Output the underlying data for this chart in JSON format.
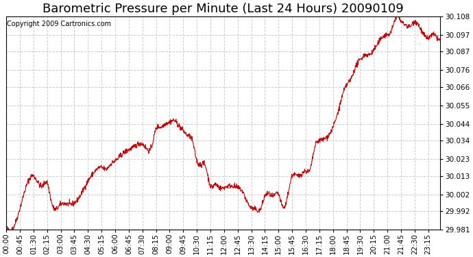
{
  "title": "Barometric Pressure per Minute (Last 24 Hours) 20090109",
  "copyright": "Copyright 2009 Cartronics.com",
  "line_color": "#cc0000",
  "background_color": "#ffffff",
  "grid_color": "#cccccc",
  "ylim": [
    29.981,
    30.108
  ],
  "yticks": [
    29.981,
    29.992,
    30.002,
    30.013,
    30.023,
    30.034,
    30.044,
    30.055,
    30.066,
    30.076,
    30.087,
    30.097,
    30.108
  ],
  "xtick_labels": [
    "00:00",
    "00:45",
    "01:30",
    "02:15",
    "03:00",
    "03:45",
    "04:30",
    "05:15",
    "06:00",
    "06:45",
    "07:30",
    "08:15",
    "09:00",
    "09:45",
    "10:30",
    "11:15",
    "12:00",
    "12:45",
    "13:30",
    "14:15",
    "15:00",
    "15:45",
    "16:30",
    "17:15",
    "18:00",
    "18:45",
    "19:30",
    "20:15",
    "21:00",
    "21:45",
    "22:30",
    "23:15"
  ],
  "title_fontsize": 13,
  "tick_fontsize": 7.5,
  "copyright_fontsize": 7,
  "key_points": [
    [
      0,
      29.983
    ],
    [
      30,
      29.985
    ],
    [
      90,
      30.013
    ],
    [
      120,
      30.007
    ],
    [
      135,
      30.009
    ],
    [
      150,
      29.997
    ],
    [
      180,
      29.996
    ],
    [
      210,
      29.996
    ],
    [
      240,
      30.0
    ],
    [
      270,
      30.01
    ],
    [
      285,
      30.014
    ],
    [
      300,
      30.017
    ],
    [
      315,
      30.018
    ],
    [
      330,
      30.017
    ],
    [
      345,
      30.02
    ],
    [
      360,
      30.022
    ],
    [
      390,
      30.027
    ],
    [
      420,
      30.03
    ],
    [
      450,
      30.032
    ],
    [
      465,
      30.029
    ],
    [
      480,
      30.03
    ],
    [
      495,
      30.041
    ],
    [
      510,
      30.042
    ],
    [
      525,
      30.044
    ],
    [
      540,
      30.045
    ],
    [
      555,
      30.046
    ],
    [
      570,
      30.043
    ],
    [
      585,
      30.04
    ],
    [
      600,
      30.037
    ],
    [
      615,
      30.034
    ],
    [
      630,
      30.022
    ],
    [
      645,
      30.02
    ],
    [
      660,
      30.018
    ],
    [
      675,
      30.007
    ],
    [
      690,
      30.008
    ],
    [
      705,
      30.006
    ],
    [
      720,
      30.006
    ],
    [
      735,
      30.007
    ],
    [
      750,
      30.007
    ],
    [
      765,
      30.006
    ],
    [
      780,
      30.004
    ],
    [
      795,
      29.998
    ],
    [
      810,
      29.994
    ],
    [
      825,
      29.993
    ],
    [
      840,
      29.993
    ],
    [
      855,
      30.001
    ],
    [
      870,
      30.002
    ],
    [
      885,
      30.001
    ],
    [
      900,
      30.002
    ],
    [
      915,
      29.994
    ],
    [
      930,
      30.001
    ],
    [
      945,
      30.013
    ],
    [
      960,
      30.013
    ],
    [
      975,
      30.014
    ],
    [
      990,
      30.016
    ],
    [
      1005,
      30.017
    ],
    [
      1020,
      30.03
    ],
    [
      1035,
      30.034
    ],
    [
      1050,
      30.035
    ],
    [
      1065,
      30.037
    ],
    [
      1080,
      30.042
    ],
    [
      1095,
      30.05
    ],
    [
      1110,
      30.06
    ],
    [
      1125,
      30.067
    ],
    [
      1140,
      30.071
    ],
    [
      1155,
      30.078
    ],
    [
      1170,
      30.082
    ],
    [
      1185,
      30.085
    ],
    [
      1200,
      30.085
    ],
    [
      1215,
      30.088
    ],
    [
      1230,
      30.092
    ],
    [
      1245,
      30.096
    ],
    [
      1260,
      30.097
    ],
    [
      1275,
      30.1
    ],
    [
      1290,
      30.108
    ],
    [
      1305,
      30.105
    ],
    [
      1320,
      30.103
    ],
    [
      1335,
      30.102
    ],
    [
      1350,
      30.105
    ],
    [
      1365,
      30.102
    ],
    [
      1380,
      30.097
    ],
    [
      1395,
      30.095
    ],
    [
      1410,
      30.097
    ],
    [
      1425,
      30.095
    ],
    [
      1435,
      30.094
    ]
  ]
}
